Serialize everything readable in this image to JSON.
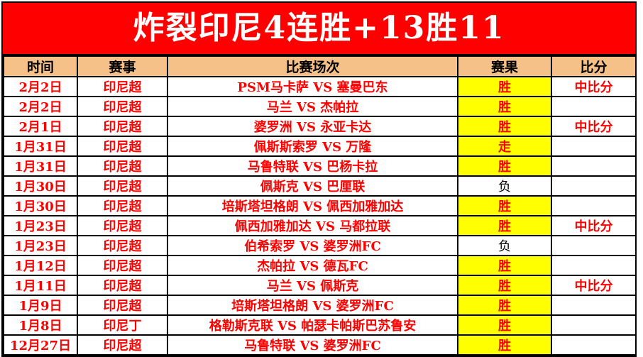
{
  "banner": {
    "title": "炸裂印尼4连胜+13胜11"
  },
  "colors": {
    "banner_bg": "#fe0000",
    "banner_text": "#ffffff",
    "header_bg": "#f5c189",
    "win_bg": "#ffff00",
    "text_red": "#fe0000",
    "text_black": "#000000",
    "border": "#000000"
  },
  "table": {
    "headers": [
      "时间",
      "赛事",
      "比赛场次",
      "赛果",
      "比分"
    ],
    "rows": [
      {
        "date": "2月2日",
        "league": "印尼超",
        "match": "PSM马卡萨 VS 塞曼巴东",
        "result": "胜",
        "highlight": true,
        "score": "中比分"
      },
      {
        "date": "2月2日",
        "league": "印尼超",
        "match": "马兰 VS 杰帕拉",
        "result": "胜",
        "highlight": true,
        "score": ""
      },
      {
        "date": "2月1日",
        "league": "印尼超",
        "match": "婆罗洲 VS 永亚卡达",
        "result": "胜",
        "highlight": true,
        "score": "中比分"
      },
      {
        "date": "1月31日",
        "league": "印尼超",
        "match": "佩斯斯索罗 VS 万隆",
        "result": "走",
        "highlight": true,
        "score": ""
      },
      {
        "date": "1月31日",
        "league": "印尼超",
        "match": "马鲁特联 VS 巴杨卡拉",
        "result": "胜",
        "highlight": true,
        "score": ""
      },
      {
        "date": "1月30日",
        "league": "印尼超",
        "match": "佩斯克 VS 巴厘联",
        "result": "负",
        "highlight": false,
        "score": ""
      },
      {
        "date": "1月30日",
        "league": "印尼超",
        "match": "培斯塔坦格朗 VS 佩西加雅加达",
        "result": "胜",
        "highlight": true,
        "score": ""
      },
      {
        "date": "1月23日",
        "league": "印尼超",
        "match": "佩西加雅加达 VS 马都拉联",
        "result": "胜",
        "highlight": true,
        "score": "中比分"
      },
      {
        "date": "1月23日",
        "league": "印尼超",
        "match": "伯希索罗 VS 婆罗洲FC",
        "result": "负",
        "highlight": false,
        "score": ""
      },
      {
        "date": "1月12日",
        "league": "印尼超",
        "match": "杰帕拉 VS 德瓦FC",
        "result": "胜",
        "highlight": true,
        "score": ""
      },
      {
        "date": "1月11日",
        "league": "印尼超",
        "match": "马兰 VS 佩斯克",
        "result": "胜",
        "highlight": true,
        "score": "中比分"
      },
      {
        "date": "1月9日",
        "league": "印尼超",
        "match": "培斯塔坦格朗 VS 婆罗洲FC",
        "result": "胜",
        "highlight": true,
        "score": ""
      },
      {
        "date": "1月8日",
        "league": "印尼丁",
        "match": "格勒斯克联 VS 帕瑟卡帕斯巴苏鲁安",
        "result": "胜",
        "highlight": true,
        "score": ""
      },
      {
        "date": "12月27日",
        "league": "印尼超",
        "match": "马鲁特联 VS 婆罗洲FC",
        "result": "胜",
        "highlight": true,
        "score": ""
      }
    ]
  }
}
